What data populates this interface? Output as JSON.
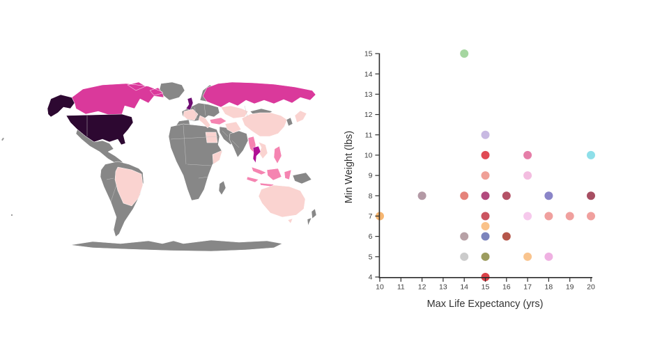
{
  "page": {
    "background_color": "#ffffff"
  },
  "map": {
    "ocean_color": "#ffffff",
    "land_color": "#878787",
    "border_color": "#ffffff",
    "regions": {
      "alaska-usa": "#2d0831",
      "usa": "#2d0831",
      "canada": "#da399b",
      "greenland": "#878787",
      "mexico-central-america": "#878787",
      "south-america": "#878787",
      "brazil": "#fad3d0",
      "antarctica": "#878787",
      "scandinavia": "#878787",
      "europe": "#878787",
      "uk": "#6e0d72",
      "france": "#fad3d0",
      "italy": "#fad3d0",
      "turkey": "#f584b1",
      "egypt": "#fad3d0",
      "africa": "#878787",
      "somalia": "#fad3d0",
      "madagascar": "#878787",
      "middle-east": "#878787",
      "iran": "#fad3d0",
      "russia": "#da399b",
      "central-asia": "#fad3d0",
      "mongolia": "#878787",
      "china": "#fad3d0",
      "india": "#878787",
      "myanmar": "#f584b1",
      "thailand": "#b01095",
      "vietnam": "#fad3d0",
      "malaysia": "#f584b1",
      "indonesia": "#f584b1",
      "philippines": "#f584b1",
      "new-guinea": "#878787",
      "japan": "#fad3d0",
      "korea": "#878787",
      "australia": "#fad3d0",
      "new-zealand": "#878787"
    }
  },
  "chart_data": {
    "type": "scatter",
    "title": "",
    "xlabel": "Max Life Expectancy (yrs)",
    "ylabel": "Min Weight (lbs)",
    "xlim": [
      10,
      20
    ],
    "ylim": [
      4,
      15
    ],
    "grid": false,
    "legend": "none",
    "xticks": [
      10,
      11,
      12,
      13,
      14,
      15,
      16,
      17,
      18,
      19,
      20
    ],
    "yticks": [
      4,
      5,
      6,
      7,
      8,
      9,
      10,
      11,
      12,
      13,
      14,
      15
    ],
    "points": [
      {
        "x": 14,
        "y": 15,
        "color": "#a5d6a0"
      },
      {
        "x": 15,
        "y": 11,
        "color": "#c8b9e2"
      },
      {
        "x": 15,
        "y": 10,
        "color": "#e04a54"
      },
      {
        "x": 17,
        "y": 10,
        "color": "#e57ea8"
      },
      {
        "x": 20,
        "y": 10,
        "color": "#8edfe9"
      },
      {
        "x": 15,
        "y": 9,
        "color": "#efa097"
      },
      {
        "x": 17,
        "y": 9,
        "color": "#f3bde0"
      },
      {
        "x": 12,
        "y": 8,
        "color": "#b399a5"
      },
      {
        "x": 14,
        "y": 8,
        "color": "#e5837a"
      },
      {
        "x": 15,
        "y": 8,
        "color": "#b24a7e"
      },
      {
        "x": 16,
        "y": 8,
        "color": "#b45266"
      },
      {
        "x": 18,
        "y": 8,
        "color": "#8a85c8"
      },
      {
        "x": 20,
        "y": 8,
        "color": "#a74e62"
      },
      {
        "x": 10,
        "y": 7,
        "color": "#f6b671"
      },
      {
        "x": 15,
        "y": 7,
        "color": "#cb5460"
      },
      {
        "x": 17,
        "y": 7,
        "color": "#f6c9ec"
      },
      {
        "x": 18,
        "y": 7,
        "color": "#f0a09e"
      },
      {
        "x": 19,
        "y": 7,
        "color": "#f0a09e"
      },
      {
        "x": 20,
        "y": 7,
        "color": "#f0a09e"
      },
      {
        "x": 15,
        "y": 6.5,
        "color": "#fac289"
      },
      {
        "x": 14,
        "y": 6,
        "color": "#b7a1a6"
      },
      {
        "x": 15,
        "y": 6,
        "color": "#7b84bd"
      },
      {
        "x": 16,
        "y": 6,
        "color": "#b5564a"
      },
      {
        "x": 14,
        "y": 5,
        "color": "#cbcbcb"
      },
      {
        "x": 15,
        "y": 5,
        "color": "#9c9c5e"
      },
      {
        "x": 17,
        "y": 5,
        "color": "#f9c48e"
      },
      {
        "x": 18,
        "y": 5,
        "color": "#efb1e2"
      },
      {
        "x": 15,
        "y": 4,
        "color": "#da4147"
      }
    ],
    "marker_radius_px": 6
  }
}
